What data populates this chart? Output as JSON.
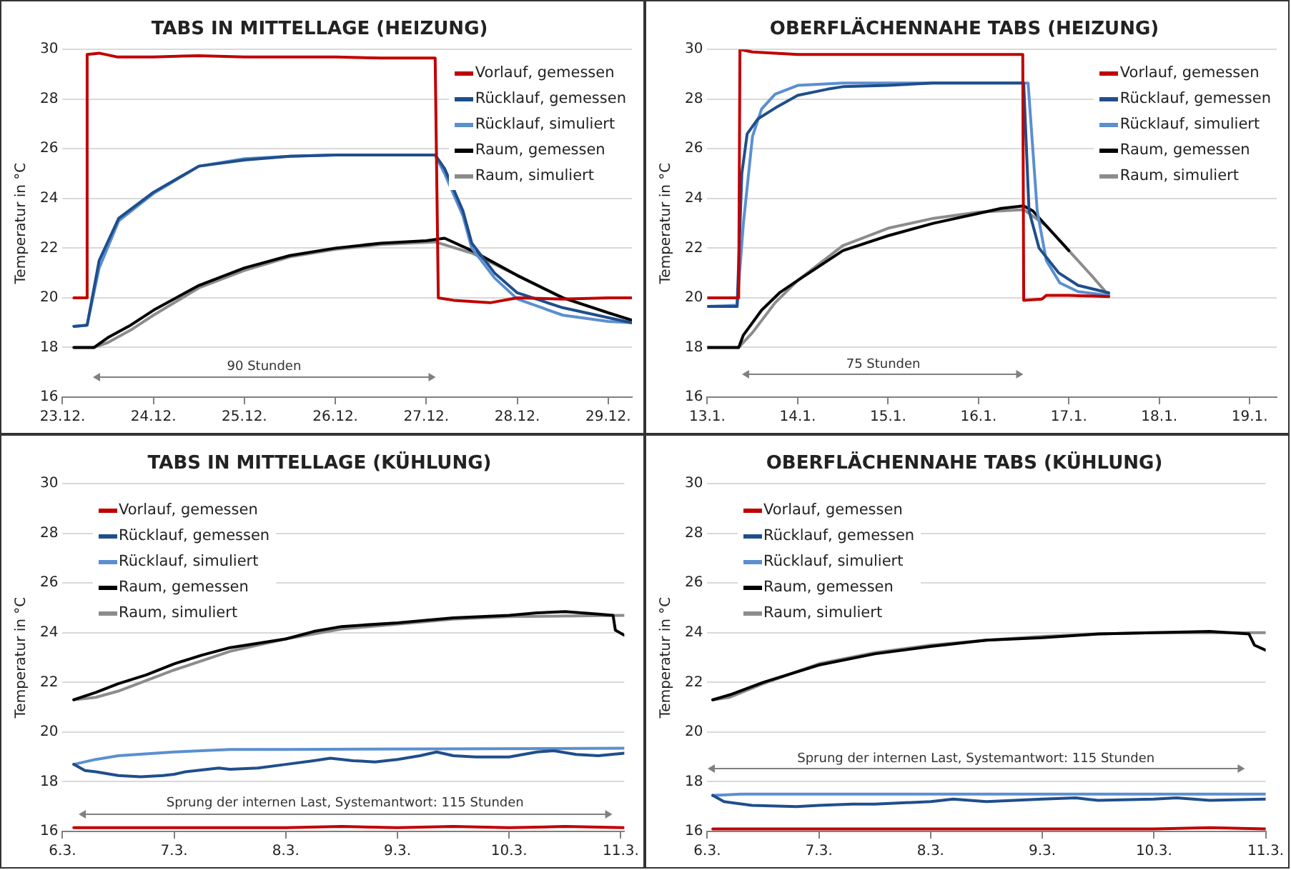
{
  "chart_data": [
    {
      "type": "line",
      "title": "TABS IN MITTELLAGE (HEIZUNG)",
      "ylabel": "Temperatur in °C",
      "legend": "top right",
      "grid": "y",
      "marker": "none",
      "line_style": "solid",
      "xlim": [
        "--12-23",
        "--12-29T06:15"
      ],
      "xticks": [
        {
          "value": "--12-23",
          "label": "23.12."
        },
        {
          "value": "--12-24",
          "label": "24.12."
        },
        {
          "value": "--12-25",
          "label": "25.12."
        },
        {
          "value": "--12-26",
          "label": "26.12."
        },
        {
          "value": "--12-27",
          "label": "27.12."
        },
        {
          "value": "--12-28",
          "label": "28.12."
        },
        {
          "value": "--12-29",
          "label": "29.12."
        }
      ],
      "ylim": [
        16,
        30
      ],
      "yticks": [
        16,
        18,
        20,
        22,
        24,
        26,
        28,
        30
      ],
      "annotations": [
        "90 Stunden"
      ],
      "series": [
        {
          "name": "Vorlauf, gemessen",
          "color": "#c00000",
          "x": [
            "--12-23T03:00",
            "--12-23T06:10",
            "--12-23T06:30",
            "--12-23T09:40",
            "--12-23T14:20",
            "--12-24",
            "--12-24T12:00",
            "--12-25",
            "--12-25T12:00",
            "--12-26",
            "--12-26T12:00",
            "--12-27T02:20",
            "--12-27T03:10",
            "--12-27T07:10",
            "--12-27T16:50",
            "--12-28",
            "--12-28T12:00",
            "--12-29",
            "--12-29T06:10"
          ],
          "values": [
            20,
            20,
            29.8,
            29.85,
            29.7,
            29.7,
            29.75,
            29.7,
            29.7,
            29.7,
            29.65,
            29.65,
            20,
            19.9,
            19.8,
            20,
            19.95,
            20,
            20
          ]
        },
        {
          "name": "Rücklauf, gemessen",
          "color": "#1f4e8c",
          "x": [
            "--12-23T03:00",
            "--12-23T06:30",
            "--12-23T09:40",
            "--12-23T14:50",
            "--12-24",
            "--12-24T12:00",
            "--12-25",
            "--12-25T12:00",
            "--12-26",
            "--12-27T02:20",
            "--12-27T04:50",
            "--12-27T09:40",
            "--12-27T12:00",
            "--12-27T18:00",
            "--12-28",
            "--12-28T12:00",
            "--12-29",
            "--12-29T06:10"
          ],
          "values": [
            18.85,
            18.9,
            21.5,
            23.2,
            24.25,
            25.3,
            25.55,
            25.7,
            25.75,
            25.75,
            25.2,
            23.5,
            22.2,
            21.0,
            20.2,
            19.6,
            19.2,
            19.0
          ]
        },
        {
          "name": "Rücklauf, simuliert",
          "color": "#5b8fd0",
          "x": [
            "--12-23T03:00",
            "--12-23T06:30",
            "--12-23T09:40",
            "--12-23T14:50",
            "--12-24",
            "--12-24T12:00",
            "--12-25",
            "--12-25T12:00",
            "--12-26",
            "--12-27T02:20",
            "--12-27T04:50",
            "--12-27T09:40",
            "--12-27T12:00",
            "--12-27T18:00",
            "--12-28",
            "--12-28T12:00",
            "--12-29",
            "--12-29T06:10"
          ],
          "values": [
            18.85,
            18.9,
            21.2,
            23.1,
            24.2,
            25.3,
            25.6,
            25.7,
            25.75,
            25.75,
            25.0,
            23.3,
            22.0,
            20.8,
            19.95,
            19.3,
            19.05,
            19.0
          ]
        },
        {
          "name": "Raum, gemessen",
          "color": "#000000",
          "x": [
            "--12-23T03:00",
            "--12-23T08:20",
            "--12-23T12:00",
            "--12-23T18:00",
            "--12-24",
            "--12-24T12:00",
            "--12-25",
            "--12-25T12:00",
            "--12-26",
            "--12-26T12:00",
            "--12-27",
            "--12-27T04:50",
            "--12-27T12:00",
            "--12-28",
            "--12-28T12:00",
            "--12-29",
            "--12-29T06:10"
          ],
          "values": [
            18,
            18,
            18.4,
            18.9,
            19.5,
            20.5,
            21.2,
            21.7,
            22.0,
            22.2,
            22.3,
            22.4,
            21.9,
            20.9,
            20.0,
            19.4,
            19.1
          ]
        },
        {
          "name": "Raum, simuliert",
          "color": "#8c8c8c",
          "x": [
            "--12-23T03:00",
            "--12-23T08:20",
            "--12-23T12:00",
            "--12-23T18:00",
            "--12-24",
            "--12-24T12:00",
            "--12-25",
            "--12-25T12:00",
            "--12-26",
            "--12-26T12:00",
            "--12-27T02:20",
            "--12-27T12:00",
            "--12-28",
            "--12-28T12:00",
            "--12-29",
            "--12-29T06:10"
          ],
          "values": [
            18,
            18,
            18.2,
            18.7,
            19.3,
            20.4,
            21.1,
            21.65,
            21.95,
            22.15,
            22.25,
            21.8,
            20.9,
            20.0,
            19.4,
            19.1
          ]
        }
      ]
    },
    {
      "type": "line",
      "title": "OBERFLÄCHENNAHE TABS (HEIZUNG)",
      "ylabel": "Temperatur in °C",
      "legend": "top right",
      "grid": "y",
      "marker": "none",
      "line_style": "solid",
      "xlim": [
        "--01-13",
        "--01-19T07:10"
      ],
      "xticks": [
        {
          "value": "--01-13",
          "label": "13.1."
        },
        {
          "value": "--01-14",
          "label": "14.1."
        },
        {
          "value": "--01-15",
          "label": "15.1."
        },
        {
          "value": "--01-16",
          "label": "16.1."
        },
        {
          "value": "--01-17",
          "label": "17.1."
        },
        {
          "value": "--01-18",
          "label": "18.1."
        },
        {
          "value": "--01-19",
          "label": "19.1."
        }
      ],
      "ylim": [
        16,
        30
      ],
      "yticks": [
        16,
        18,
        20,
        22,
        24,
        26,
        28,
        30
      ],
      "annotations": [
        "75 Stunden"
      ],
      "series": [
        {
          "name": "Vorlauf, gemessen",
          "color": "#c00000",
          "x": [
            "--01-13",
            "--01-13T08:20",
            "--01-13T08:40",
            "--01-13T12:00",
            "--01-14",
            "--01-15",
            "--01-16",
            "--01-16T11:45",
            "--01-16T12:00",
            "--01-16T16:50",
            "--01-16T18:00",
            "--01-17",
            "--01-17T10:35"
          ],
          "values": [
            20,
            20,
            30,
            29.9,
            29.8,
            29.8,
            29.8,
            29.8,
            19.9,
            19.95,
            20.1,
            20.1,
            20.05
          ]
        },
        {
          "name": "Rücklauf, gemessen",
          "color": "#1f4e8c",
          "x": [
            "--01-13",
            "--01-13T07:55",
            "--01-13T09:10",
            "--01-13T10:35",
            "--01-13T13:25",
            "--01-13T18:40",
            "--01-14",
            "--01-14T07:55",
            "--01-14T12:00",
            "--01-15",
            "--01-15T12:00",
            "--01-16T12:00",
            "--01-16T13:25",
            "--01-16T16:05",
            "--01-16T21:20",
            "--01-17T02:25",
            "--01-17T10:35"
          ],
          "values": [
            19.65,
            19.65,
            25.0,
            26.6,
            27.2,
            27.7,
            28.15,
            28.4,
            28.5,
            28.55,
            28.65,
            28.65,
            23.5,
            22.0,
            21.0,
            20.5,
            20.2
          ]
        },
        {
          "name": "Rücklauf, simuliert",
          "color": "#5b8fd0",
          "x": [
            "--01-13",
            "--01-13T07:55",
            "--01-13T09:35",
            "--01-13T12:00",
            "--01-13T14:25",
            "--01-13T18:00",
            "--01-14",
            "--01-14T12:00",
            "--01-16T13:10",
            "--01-16T15:35",
            "--01-16T18:00",
            "--01-16T21:35",
            "--01-17T02:25",
            "--01-17T10:35"
          ],
          "values": [
            19.65,
            19.7,
            23,
            26.5,
            27.6,
            28.2,
            28.55,
            28.65,
            28.65,
            23.5,
            21.5,
            20.6,
            20.25,
            20.1
          ]
        },
        {
          "name": "Raum, gemessen",
          "color": "#000000",
          "x": [
            "--01-13",
            "--01-13T08:20",
            "--01-13T09:35",
            "--01-13T14:25",
            "--01-13T19:10",
            "--01-14",
            "--01-14T12:00",
            "--01-15",
            "--01-15T12:00",
            "--01-16",
            "--01-16T06:00",
            "--01-16T12:00",
            "--01-16T14:25",
            "--01-16T19:10",
            "--01-17"
          ],
          "values": [
            18,
            18,
            18.5,
            19.5,
            20.2,
            20.7,
            21.9,
            22.5,
            23.0,
            23.4,
            23.6,
            23.7,
            23.5,
            22.7,
            21.9
          ]
        },
        {
          "name": "Raum, simuliert",
          "color": "#8c8c8c",
          "x": [
            "--01-13",
            "--01-13T08:20",
            "--01-13T12:00",
            "--01-13T18:00",
            "--01-14",
            "--01-14T12:00",
            "--01-15",
            "--01-15T12:00",
            "--01-16",
            "--01-16T12:00",
            "--01-16T18:00",
            "--01-17",
            "--01-17T06:00",
            "--01-17T10:35"
          ],
          "values": [
            18,
            18,
            18.6,
            19.8,
            20.7,
            22.1,
            22.8,
            23.2,
            23.45,
            23.55,
            22.9,
            21.9,
            20.9,
            20.1
          ]
        }
      ]
    },
    {
      "type": "line",
      "title": "TABS IN MITTELLAGE (KÜHLUNG)",
      "ylabel": "Temperatur in °C",
      "legend": "top left",
      "grid": "y",
      "marker": "none",
      "line_style": "solid",
      "xlim": [
        "--03-06",
        "--03-11T00:45"
      ],
      "xticks": [
        {
          "value": "--03-06",
          "label": "6.3."
        },
        {
          "value": "--03-07",
          "label": "7.3."
        },
        {
          "value": "--03-08",
          "label": "8.3."
        },
        {
          "value": "--03-09",
          "label": "9.3."
        },
        {
          "value": "--03-10",
          "label": "10.3."
        },
        {
          "value": "--03-11",
          "label": "11.3."
        }
      ],
      "ylim": [
        16,
        30
      ],
      "yticks": [
        16,
        18,
        20,
        22,
        24,
        26,
        28,
        30
      ],
      "annotations": [
        "Sprung der internen Last, Systemantwort: 115 Stunden"
      ],
      "series": [
        {
          "name": "Vorlauf, gemessen",
          "color": "#c00000",
          "x": [
            "--03-06T02:25",
            "--03-06T12:00",
            "--03-07",
            "--03-07T12:00",
            "--03-08",
            "--03-08T12:00",
            "--03-09",
            "--03-09T12:00",
            "--03-10",
            "--03-10T12:00",
            "--03-11T00:45"
          ],
          "values": [
            16.15,
            16.15,
            16.15,
            16.15,
            16.15,
            16.2,
            16.15,
            16.2,
            16.15,
            16.2,
            16.15
          ]
        },
        {
          "name": "Rücklauf, gemessen",
          "color": "#1f4e8c",
          "x": [
            "--03-06T02:25",
            "--03-06T04:50",
            "--03-06T07:10",
            "--03-06T12:00",
            "--03-06T16:50",
            "--03-06T21:35",
            "--03-07",
            "--03-07T02:25",
            "--03-07T04:50",
            "--03-07T09:35",
            "--03-07T12:00",
            "--03-07T18:00",
            "--03-08",
            "--03-08T06:00",
            "--03-08T09:35",
            "--03-08T14:25",
            "--03-08T19:10",
            "--03-09",
            "--03-09T04:50",
            "--03-09T08:25",
            "--03-09T12:00",
            "--03-09T16:50",
            "--03-10",
            "--03-10T06:00",
            "--03-10T09:35",
            "--03-10T14:25",
            "--03-10T19:10",
            "--03-11T00:45"
          ],
          "values": [
            18.7,
            18.45,
            18.4,
            18.25,
            18.2,
            18.25,
            18.3,
            18.4,
            18.45,
            18.55,
            18.5,
            18.55,
            18.7,
            18.85,
            18.95,
            18.85,
            18.8,
            18.9,
            19.05,
            19.2,
            19.05,
            19.0,
            19.0,
            19.2,
            19.25,
            19.1,
            19.05,
            19.15
          ]
        },
        {
          "name": "Rücklauf, simuliert",
          "color": "#5b8fd0",
          "x": [
            "--03-06T02:25",
            "--03-06T07:10",
            "--03-06T12:00",
            "--03-07",
            "--03-07T12:00",
            "--03-08",
            "--03-11T00:45"
          ],
          "values": [
            18.7,
            18.9,
            19.05,
            19.2,
            19.3,
            19.3,
            19.35
          ]
        },
        {
          "name": "Raum, gemessen",
          "color": "#000000",
          "x": [
            "--03-06T02:25",
            "--03-06T07:10",
            "--03-06T12:00",
            "--03-06T18:00",
            "--03-07",
            "--03-07T06:00",
            "--03-07T12:00",
            "--03-08",
            "--03-08T06:00",
            "--03-08T12:00",
            "--03-09",
            "--03-09T12:00",
            "--03-10",
            "--03-10T06:00",
            "--03-10T12:00",
            "--03-10T19:10",
            "--03-10T22:20",
            "--03-10T22:50",
            "--03-11T00:45"
          ],
          "values": [
            21.3,
            21.6,
            21.95,
            22.3,
            22.75,
            23.1,
            23.4,
            23.75,
            24.05,
            24.25,
            24.4,
            24.6,
            24.7,
            24.8,
            24.85,
            24.75,
            24.7,
            24.1,
            23.9
          ]
        },
        {
          "name": "Raum, simuliert",
          "color": "#8c8c8c",
          "x": [
            "--03-06T02:25",
            "--03-06T07:10",
            "--03-06T12:00",
            "--03-07",
            "--03-07T12:00",
            "--03-08",
            "--03-08T12:00",
            "--03-09",
            "--03-09T12:00",
            "--03-10",
            "--03-11T00:45"
          ],
          "values": [
            21.3,
            21.4,
            21.65,
            22.5,
            23.25,
            23.75,
            24.15,
            24.35,
            24.55,
            24.65,
            24.7
          ]
        }
      ]
    },
    {
      "type": "line",
      "title": "OBERFLÄCHENNAHE TABS (KÜHLUNG)",
      "ylabel": "Temperatur in °C",
      "legend": "top left",
      "grid": "y",
      "marker": "none",
      "line_style": "solid",
      "xlim": [
        "--03-06",
        "--03-11"
      ],
      "xticks": [
        {
          "value": "--03-06",
          "label": "6.3."
        },
        {
          "value": "--03-07",
          "label": "7.3."
        },
        {
          "value": "--03-08",
          "label": "8.3."
        },
        {
          "value": "--03-09",
          "label": "9.3."
        },
        {
          "value": "--03-10",
          "label": "10.3."
        },
        {
          "value": "--03-11",
          "label": "11.3."
        }
      ],
      "ylim": [
        16,
        30
      ],
      "yticks": [
        16,
        18,
        20,
        22,
        24,
        26,
        28,
        30
      ],
      "annotations": [
        "Sprung der internen Last, Systemantwort: 115 Stunden"
      ],
      "series": [
        {
          "name": "Vorlauf, gemessen",
          "color": "#c00000",
          "x": [
            "--03-06T01:10",
            "--03-06T12:00",
            "--03-07",
            "--03-07T12:00",
            "--03-08",
            "--03-08T12:00",
            "--03-09",
            "--03-09T12:00",
            "--03-10",
            "--03-10T12:00",
            "--03-11"
          ],
          "values": [
            16.1,
            16.1,
            16.1,
            16.1,
            16.1,
            16.1,
            16.1,
            16.1,
            16.1,
            16.15,
            16.1
          ]
        },
        {
          "name": "Rücklauf, gemessen",
          "color": "#1f4e8c",
          "x": [
            "--03-06T01:10",
            "--03-06T03:35",
            "--03-06T09:35",
            "--03-06T19:10",
            "--03-07",
            "--03-07T07:10",
            "--03-07T12:00",
            "--03-08",
            "--03-08T04:50",
            "--03-08T12:00",
            "--03-09",
            "--03-09T07:10",
            "--03-09T12:00",
            "--03-10",
            "--03-10T04:50",
            "--03-10T12:00",
            "--03-11"
          ],
          "values": [
            17.45,
            17.2,
            17.05,
            17.0,
            17.05,
            17.1,
            17.1,
            17.2,
            17.3,
            17.2,
            17.3,
            17.35,
            17.25,
            17.3,
            17.35,
            17.25,
            17.3
          ]
        },
        {
          "name": "Rücklauf, simuliert",
          "color": "#5b8fd0",
          "x": [
            "--03-06T01:10",
            "--03-06T07:10",
            "--03-11"
          ],
          "values": [
            17.45,
            17.5,
            17.5
          ]
        },
        {
          "name": "Raum, gemessen",
          "color": "#000000",
          "x": [
            "--03-06T01:10",
            "--03-06T04:50",
            "--03-06T12:00",
            "--03-07",
            "--03-07T12:00",
            "--03-08",
            "--03-08T12:00",
            "--03-09",
            "--03-09T12:00",
            "--03-10",
            "--03-10T12:00",
            "--03-10T20:25",
            "--03-10T21:35",
            "--03-11"
          ],
          "values": [
            21.3,
            21.5,
            22.0,
            22.7,
            23.15,
            23.45,
            23.7,
            23.8,
            23.95,
            24.0,
            24.05,
            23.95,
            23.5,
            23.3
          ]
        },
        {
          "name": "Raum, simuliert",
          "color": "#8c8c8c",
          "x": [
            "--03-06T01:10",
            "--03-06T04:50",
            "--03-06T12:00",
            "--03-07",
            "--03-07T12:00",
            "--03-08",
            "--03-08T12:00",
            "--03-09",
            "--03-09T12:00",
            "--03-10",
            "--03-11"
          ],
          "values": [
            21.3,
            21.4,
            21.95,
            22.75,
            23.2,
            23.5,
            23.7,
            23.85,
            23.95,
            24.0,
            24.0
          ]
        }
      ]
    }
  ]
}
